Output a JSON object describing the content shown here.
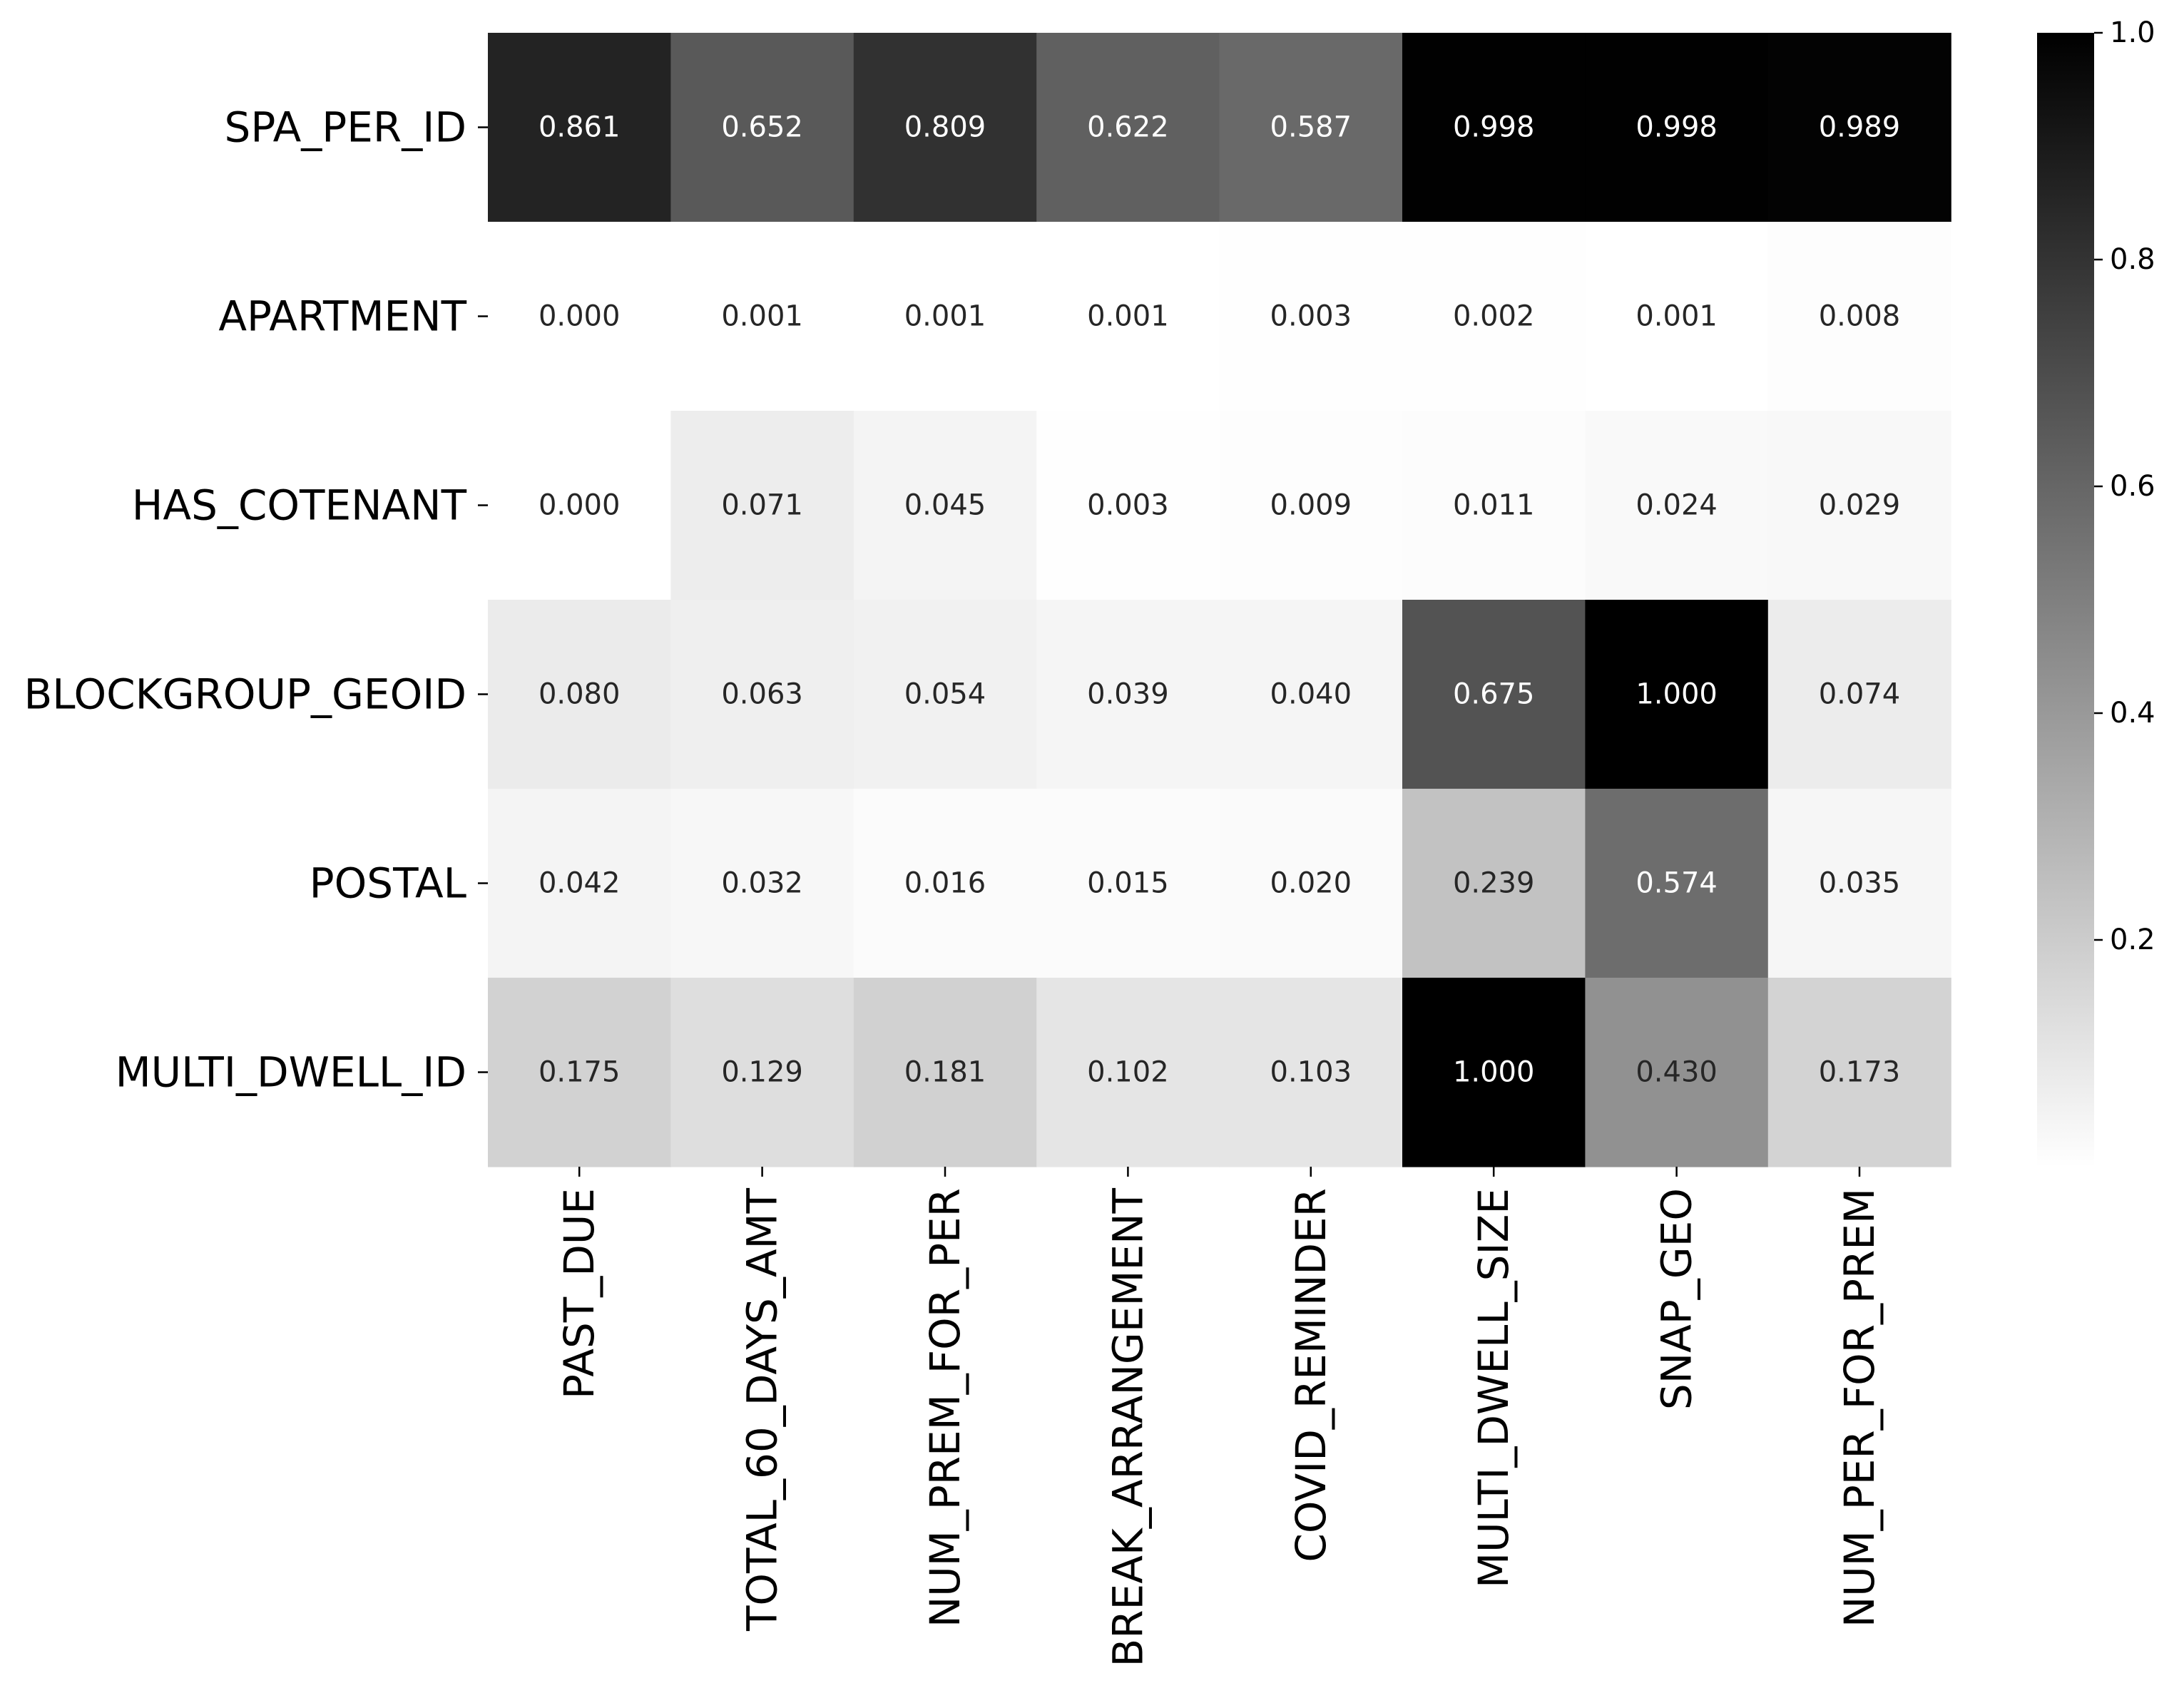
{
  "chart_data": {
    "type": "heatmap",
    "title": "",
    "xlabel": "",
    "ylabel": "",
    "colormap": "Greys",
    "vmin": 0.0,
    "vmax": 1.0,
    "columns": [
      "PAST_DUE",
      "TOTAL_60_DAYS_AMT",
      "NUM_PREM_FOR_PER",
      "BREAK_ARRANGEMENT",
      "COVID_REMINDER",
      "MULTI_DWELL_SIZE",
      "SNAP_GEO",
      "NUM_PER_FOR_PREM"
    ],
    "rows": [
      "SPA_PER_ID",
      "APARTMENT",
      "HAS_COTENANT",
      "BLOCKGROUP_GEOID",
      "POSTAL",
      "MULTI_DWELL_ID"
    ],
    "values": [
      [
        0.861,
        0.652,
        0.809,
        0.622,
        0.587,
        0.998,
        0.998,
        0.989
      ],
      [
        0.0,
        0.001,
        0.001,
        0.001,
        0.003,
        0.002,
        0.001,
        0.008
      ],
      [
        0.0,
        0.071,
        0.045,
        0.003,
        0.009,
        0.011,
        0.024,
        0.029
      ],
      [
        0.08,
        0.063,
        0.054,
        0.039,
        0.04,
        0.675,
        1.0,
        0.074
      ],
      [
        0.042,
        0.032,
        0.016,
        0.015,
        0.02,
        0.239,
        0.574,
        0.035
      ],
      [
        0.175,
        0.129,
        0.181,
        0.102,
        0.103,
        1.0,
        0.43,
        0.173
      ]
    ],
    "annotations": [
      [
        "0.861",
        "0.652",
        "0.809",
        "0.622",
        "0.587",
        "0.998",
        "0.998",
        "0.989"
      ],
      [
        "0.000",
        "0.001",
        "0.001",
        "0.001",
        "0.003",
        "0.002",
        "0.001",
        "0.008"
      ],
      [
        "0.000",
        "0.071",
        "0.045",
        "0.003",
        "0.009",
        "0.011",
        "0.024",
        "0.029"
      ],
      [
        "0.080",
        "0.063",
        "0.054",
        "0.039",
        "0.040",
        "0.675",
        "1.000",
        "0.074"
      ],
      [
        "0.042",
        "0.032",
        "0.016",
        "0.015",
        "0.020",
        "0.239",
        "0.574",
        "0.035"
      ],
      [
        "0.175",
        "0.129",
        "0.181",
        "0.102",
        "0.103",
        "1.000",
        "0.430",
        "0.173"
      ]
    ],
    "colorbar": {
      "ticks": [
        0.2,
        0.4,
        0.6,
        0.8,
        1.0
      ],
      "tick_labels": [
        "0.2",
        "0.4",
        "0.6",
        "0.8",
        "1.0"
      ]
    }
  }
}
